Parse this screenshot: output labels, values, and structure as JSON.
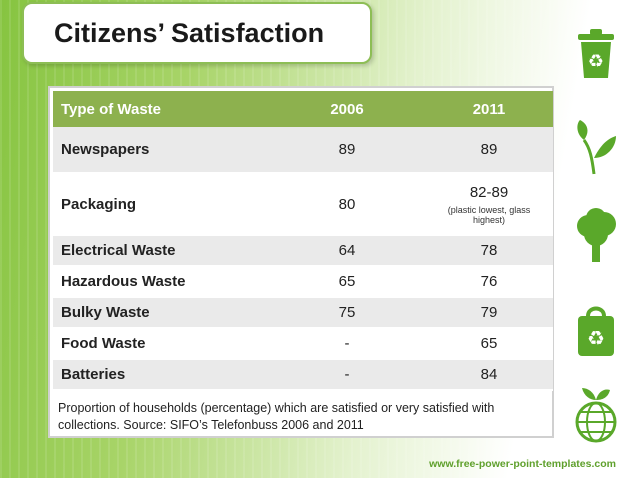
{
  "slide": {
    "title": "Citizens’ Satisfaction",
    "footer_url": "www.free-power-point-templates.com"
  },
  "table": {
    "headers": [
      "Type of Waste",
      "2006",
      "2011"
    ],
    "rows": [
      {
        "label": "Newspapers",
        "v2006": "89",
        "v2011": "89"
      },
      {
        "label": "Packaging",
        "v2006": "80",
        "v2011": "82-89",
        "note": "(plastic lowest, glass highest)"
      },
      {
        "label": "Electrical Waste",
        "v2006": "64",
        "v2011": "78"
      },
      {
        "label": "Hazardous Waste",
        "v2006": "65",
        "v2011": "76"
      },
      {
        "label": "Bulky Waste",
        "v2006": "75",
        "v2011": "79"
      },
      {
        "label": "Food Waste",
        "v2006": "-",
        "v2011": "65"
      },
      {
        "label": "Batteries",
        "v2006": "-",
        "v2011": "84"
      }
    ],
    "caption": "Proportion of households (percentage) which are satisfied or very satisfied with collections. Source: SIFO’s Telefonbuss 2006 and 2011"
  },
  "icons": [
    "recycle-bin-icon",
    "leaves-icon",
    "tree-icon",
    "recycle-bag-icon",
    "globe-plant-icon"
  ],
  "colors": {
    "header_green": "#8db14e",
    "accent_green": "#5fa02c",
    "row_gray": "#eaeaea"
  }
}
